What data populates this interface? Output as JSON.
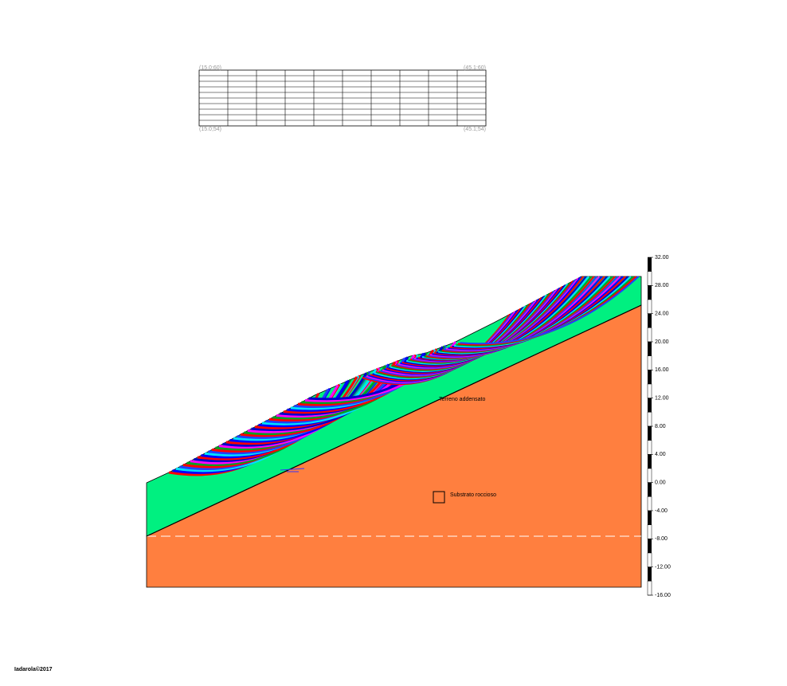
{
  "grid_labels": {
    "top_left": "(15.0;60)",
    "top_right": "(45.1;60)",
    "bottom_left": "(15.0;54)",
    "bottom_right": "(45.1;54)"
  },
  "layers": [
    "Terreno addensato",
    "Substrato roccioso"
  ],
  "scale": {
    "ticks": [
      {
        "value": 32,
        "label": "32.00"
      },
      {
        "value": 28,
        "label": "28.00"
      },
      {
        "value": 24,
        "label": "24.00"
      },
      {
        "value": 20,
        "label": "20.00"
      },
      {
        "value": 16,
        "label": "16.00"
      },
      {
        "value": 12,
        "label": "12.00"
      },
      {
        "value": 8,
        "label": "8.00"
      },
      {
        "value": 4,
        "label": "4.00"
      },
      {
        "value": 0,
        "label": "0.00"
      },
      {
        "value": -4,
        "label": "-4.00"
      },
      {
        "value": -8,
        "label": "-8.00"
      },
      {
        "value": -12,
        "label": "-12.00"
      },
      {
        "value": -16,
        "label": "-16.00"
      }
    ]
  },
  "footer": "Iadarola©2017"
}
